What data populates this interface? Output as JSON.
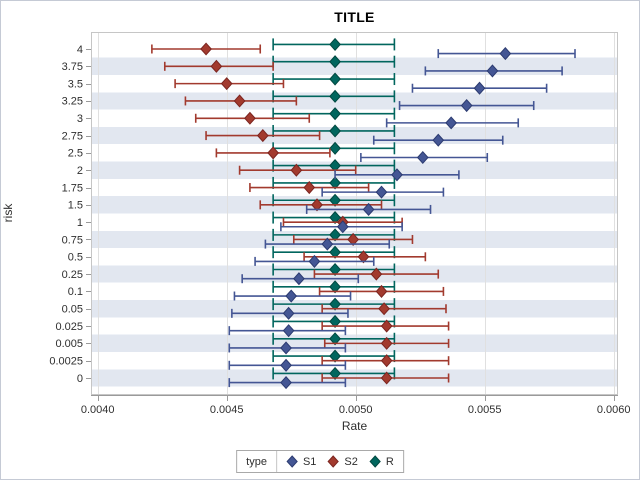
{
  "figure": {
    "title": "TITLE"
  },
  "style": {
    "band_color": "#e2e7f0",
    "grid_color": "#e0e0e0",
    "frame_color": "#c6c6c6",
    "axis_line_color": "#9a9a9a",
    "tick_label_color": "#2f2f2f",
    "figure_border_color": "#c5cad5",
    "legend_border_color": "#a9a9a9",
    "series_colors": {
      "S1": "#445694",
      "S2": "#a23a2e",
      "R": "#01665e"
    }
  },
  "chart_data": {
    "type": "scatter",
    "subtype": "horizontal-interval-plot-with-error-bars",
    "title": "TITLE",
    "xlabel": "Rate",
    "ylabel": "risk",
    "grid": "vertical-on",
    "x_axis": {
      "min": 0.004,
      "max": 0.006,
      "ticks": [
        0.004,
        0.0045,
        0.005,
        0.0055,
        0.006
      ],
      "tick_labels": [
        "0.0040",
        "0.0045",
        "0.0050",
        "0.0055",
        "0.0060"
      ]
    },
    "categories": [
      "4",
      "3.75",
      "3.5",
      "3.25",
      "3",
      "2.75",
      "2.5",
      "2",
      "1.75",
      "1.5",
      "1",
      "0.75",
      "0.5",
      "0.25",
      "0.1",
      "0.05",
      "0.025",
      "0.005",
      "0.0025",
      "0"
    ],
    "legend": {
      "title": "type",
      "position": "bottom",
      "entries": [
        "S1",
        "S2",
        "R"
      ]
    },
    "series": [
      {
        "name": "S1",
        "marker": "diamond",
        "color": "#445694",
        "edge": "#2c3b70",
        "cap_height": 9,
        "row_offset": 4.6,
        "values_low_mid_high": [
          [
            0.00532,
            0.00558,
            0.00585
          ],
          [
            0.00527,
            0.00553,
            0.0058
          ],
          [
            0.00522,
            0.00548,
            0.00574
          ],
          [
            0.00517,
            0.00543,
            0.00569
          ],
          [
            0.00512,
            0.00537,
            0.00563
          ],
          [
            0.00507,
            0.00532,
            0.00557
          ],
          [
            0.00502,
            0.00526,
            0.00551
          ],
          [
            0.00492,
            0.00516,
            0.0054
          ],
          [
            0.00487,
            0.0051,
            0.00534
          ],
          [
            0.00481,
            0.00505,
            0.00529
          ],
          [
            0.00471,
            0.00495,
            0.00518
          ],
          [
            0.00465,
            0.00489,
            0.00513
          ],
          [
            0.00461,
            0.00484,
            0.00507
          ],
          [
            0.00456,
            0.00478,
            0.00501
          ],
          [
            0.00453,
            0.00475,
            0.00498
          ],
          [
            0.00452,
            0.00474,
            0.00497
          ],
          [
            0.00451,
            0.00474,
            0.00496
          ],
          [
            0.00451,
            0.00473,
            0.00496
          ],
          [
            0.00451,
            0.00473,
            0.00496
          ],
          [
            0.00451,
            0.00473,
            0.00496
          ]
        ]
      },
      {
        "name": "S2",
        "marker": "diamond",
        "color": "#a23a2e",
        "edge": "#7b2520",
        "cap_height": 9,
        "row_offset": 0,
        "values_low_mid_high": [
          [
            0.00421,
            0.00442,
            0.00463
          ],
          [
            0.00426,
            0.00446,
            0.00468
          ],
          [
            0.0043,
            0.0045,
            0.00472
          ],
          [
            0.00434,
            0.00455,
            0.00477
          ],
          [
            0.00438,
            0.00459,
            0.00482
          ],
          [
            0.00442,
            0.00464,
            0.00486
          ],
          [
            0.00446,
            0.00468,
            0.0049
          ],
          [
            0.00455,
            0.00477,
            0.005
          ],
          [
            0.00459,
            0.00482,
            0.00505
          ],
          [
            0.00463,
            0.00485,
            0.0051
          ],
          [
            0.00472,
            0.00495,
            0.00518
          ],
          [
            0.00476,
            0.00499,
            0.00522
          ],
          [
            0.0048,
            0.00503,
            0.00527
          ],
          [
            0.00484,
            0.00508,
            0.00532
          ],
          [
            0.00486,
            0.0051,
            0.00534
          ],
          [
            0.00487,
            0.00511,
            0.00535
          ],
          [
            0.00487,
            0.00512,
            0.00536
          ],
          [
            0.00488,
            0.00512,
            0.00536
          ],
          [
            0.00487,
            0.00512,
            0.00536
          ],
          [
            0.00487,
            0.00512,
            0.00536
          ]
        ]
      },
      {
        "name": "R",
        "marker": "diamond",
        "color": "#01665e",
        "edge": "#024840",
        "cap_height": 12,
        "row_offset": -4.6,
        "values_low_mid_high": [
          [
            0.00468,
            0.00492,
            0.00515
          ],
          [
            0.00468,
            0.00492,
            0.00515
          ],
          [
            0.00468,
            0.00492,
            0.00515
          ],
          [
            0.00468,
            0.00492,
            0.00515
          ],
          [
            0.00468,
            0.00492,
            0.00515
          ],
          [
            0.00468,
            0.00492,
            0.00515
          ],
          [
            0.00468,
            0.00492,
            0.00515
          ],
          [
            0.00468,
            0.00492,
            0.00515
          ],
          [
            0.00468,
            0.00492,
            0.00515
          ],
          [
            0.00468,
            0.00492,
            0.00515
          ],
          [
            0.00468,
            0.00492,
            0.00515
          ],
          [
            0.00468,
            0.00492,
            0.00515
          ],
          [
            0.00468,
            0.00492,
            0.00515
          ],
          [
            0.00468,
            0.00492,
            0.00515
          ],
          [
            0.00468,
            0.00492,
            0.00515
          ],
          [
            0.00468,
            0.00492,
            0.00515
          ],
          [
            0.00468,
            0.00492,
            0.00515
          ],
          [
            0.00468,
            0.00492,
            0.00515
          ],
          [
            0.00468,
            0.00492,
            0.00515
          ],
          [
            0.00468,
            0.00492,
            0.00515
          ]
        ]
      }
    ]
  }
}
